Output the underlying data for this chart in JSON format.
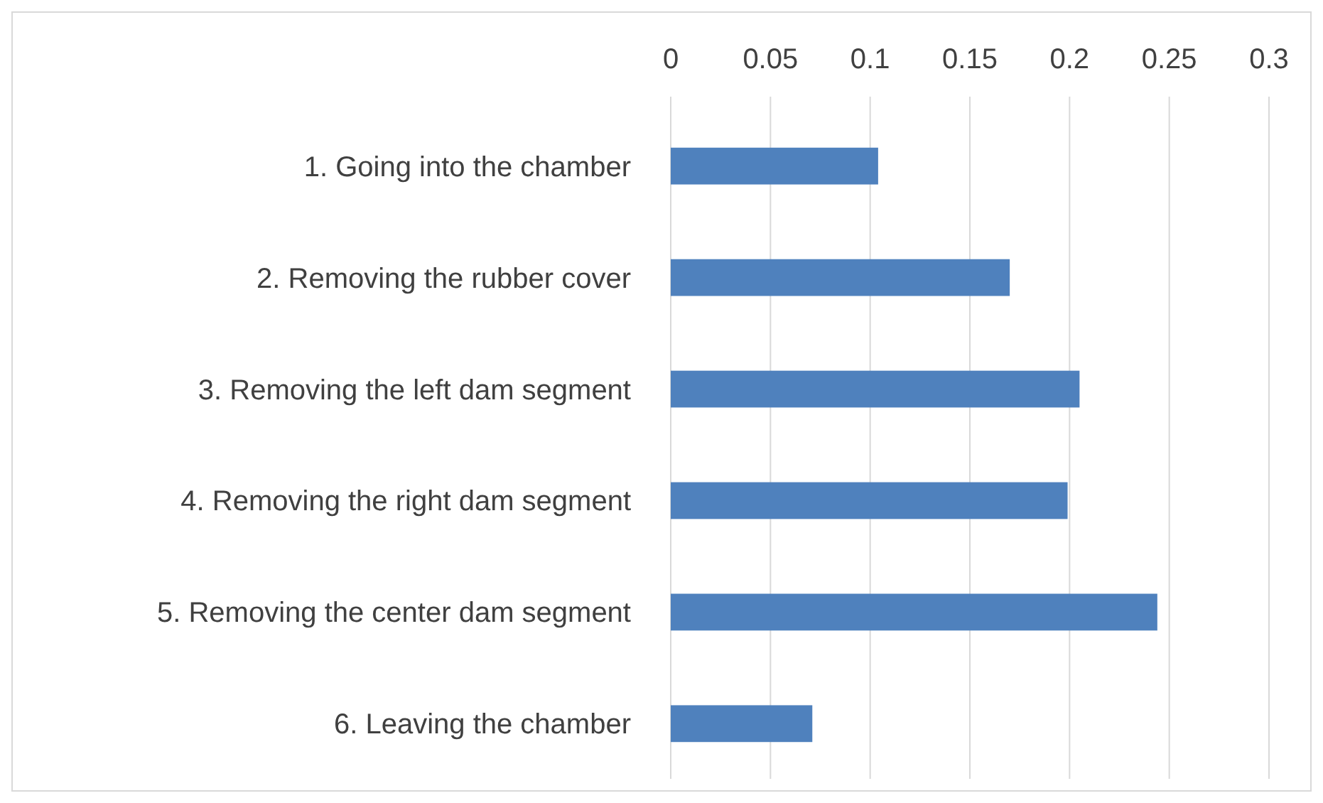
{
  "chart_data": {
    "type": "bar",
    "orientation": "horizontal",
    "categories": [
      "1. Going into the chamber",
      "2. Removing the rubber cover",
      "3. Removing the left dam segment",
      "4. Removing the right dam segment",
      "5. Removing the center dam segment",
      "6. Leaving the chamber"
    ],
    "values": [
      0.104,
      0.17,
      0.205,
      0.199,
      0.244,
      0.071
    ],
    "color": "#4f81bd",
    "xlim": [
      0,
      0.3
    ],
    "xticks": [
      0,
      0.05,
      0.1,
      0.15,
      0.2,
      0.25,
      0.3
    ],
    "grid": "x"
  }
}
